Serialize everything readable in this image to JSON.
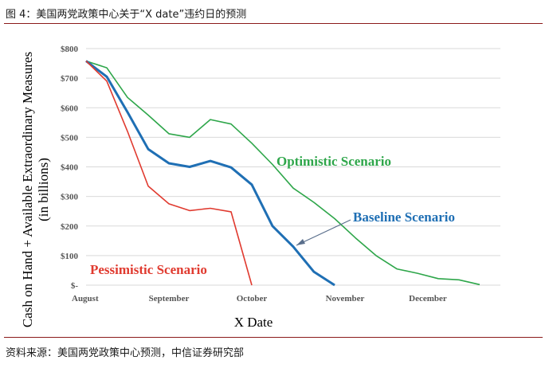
{
  "figure": {
    "title": "图 4：美国两党政策中心关于“X date”违约日的预测",
    "source": "资料来源：美国两党政策中心预测，中信证券研究部"
  },
  "colors": {
    "rule": "#8b1a1a",
    "optimistic": "#2ea64a",
    "baseline": "#1f6fb4",
    "pessimistic": "#e03a2f",
    "grid": "#d9d9d9"
  },
  "chart_data": {
    "type": "line",
    "xlabel": "X Date",
    "ylabel": "Cash on Hand + Available Extraordinary Measures (in billions)",
    "ylabel_lines": [
      "Cash on Hand + Available Extraordinary Measures",
      "(in billions)"
    ],
    "ylim": [
      0,
      800
    ],
    "y_ticks": [
      {
        "value": 0,
        "label": "$-"
      },
      {
        "value": 100,
        "label": "$100"
      },
      {
        "value": 200,
        "label": "$200"
      },
      {
        "value": 300,
        "label": "$300"
      },
      {
        "value": 400,
        "label": "$400"
      },
      {
        "value": 500,
        "label": "$500"
      },
      {
        "value": 600,
        "label": "$600"
      },
      {
        "value": 700,
        "label": "$700"
      },
      {
        "value": 800,
        "label": "$800"
      }
    ],
    "x_ticks": [
      {
        "label": "August",
        "pos": 0
      },
      {
        "label": "September",
        "pos": 4
      },
      {
        "label": "October",
        "pos": 8
      },
      {
        "label": "November",
        "pos": 12.5
      },
      {
        "label": "December",
        "pos": 16.5
      }
    ],
    "xlim": [
      0,
      20
    ],
    "grid": true,
    "series": [
      {
        "name": "Optimistic Scenario",
        "color": "#2ea64a",
        "x": [
          0,
          1,
          2,
          3,
          4,
          5,
          6,
          7,
          8,
          9,
          10,
          11,
          12,
          13,
          14,
          15,
          16,
          17,
          18,
          19
        ],
        "values": [
          758,
          735,
          635,
          575,
          512,
          500,
          560,
          545,
          480,
          408,
          328,
          280,
          225,
          160,
          100,
          55,
          40,
          22,
          18,
          2
        ]
      },
      {
        "name": "Baseline Scenario",
        "color": "#1f6fb4",
        "x": [
          0,
          1,
          2,
          3,
          4,
          5,
          6,
          7,
          8,
          9,
          10,
          11,
          12
        ],
        "values": [
          758,
          705,
          585,
          460,
          412,
          400,
          420,
          398,
          340,
          200,
          130,
          45,
          0
        ]
      },
      {
        "name": "Pessimistic Scenario",
        "color": "#e03a2f",
        "x": [
          0,
          1,
          2,
          3,
          4,
          5,
          6,
          7,
          8
        ],
        "values": [
          758,
          690,
          520,
          335,
          275,
          252,
          260,
          248,
          0
        ]
      }
    ]
  }
}
